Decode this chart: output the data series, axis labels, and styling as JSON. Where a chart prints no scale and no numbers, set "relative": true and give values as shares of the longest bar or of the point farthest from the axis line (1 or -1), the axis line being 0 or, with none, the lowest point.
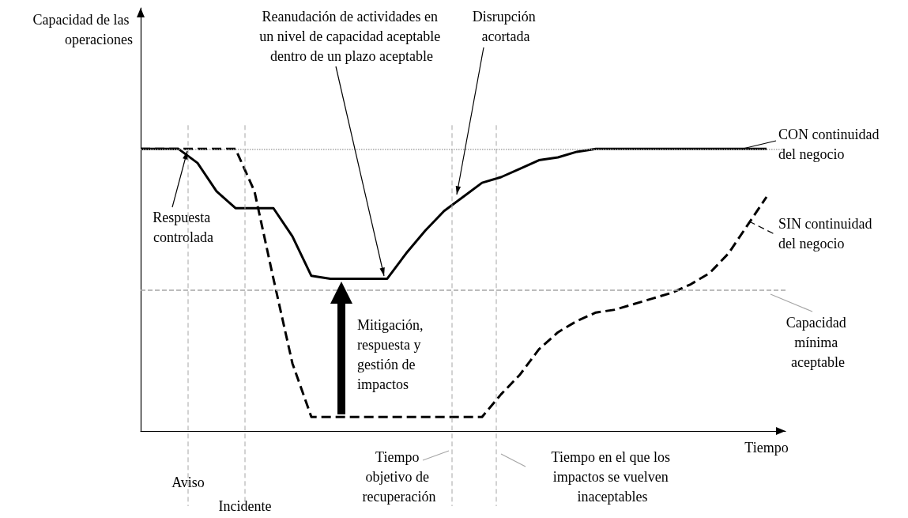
{
  "chart_data": {
    "type": "line",
    "relative": true,
    "xlabel": "Tiempo",
    "grid": false,
    "marker": "none",
    "legend": "right",
    "categories": [
      null,
      null,
      null,
      null,
      null,
      null,
      null,
      null,
      null,
      null,
      null,
      null,
      null,
      null,
      null,
      null,
      null,
      null,
      null,
      null,
      null,
      null,
      null,
      null,
      null,
      null,
      null,
      null,
      null,
      null,
      null,
      null,
      null,
      null,
      null
    ],
    "series": [
      {
        "name": "CON continuidad del negocio",
        "color": "#000000",
        "line_style": "solid",
        "values": [
          1,
          1,
          1,
          0.95,
          0.85,
          0.79,
          0.79,
          0.79,
          0.69,
          0.55,
          0.54,
          0.54,
          0.54,
          0.54,
          0.63,
          0.71,
          0.78,
          0.83,
          0.88,
          0.9,
          0.93,
          0.96,
          0.97,
          0.99,
          1,
          1,
          1,
          1,
          1,
          1,
          1,
          1,
          1,
          1,
          null
        ]
      },
      {
        "name": "SIN continuidad del negocio",
        "color": "#000000",
        "line_style": "dashed",
        "values": [
          1,
          1,
          1,
          1,
          1,
          1,
          0.85,
          0.54,
          0.24,
          0.05,
          0.05,
          0.05,
          0.05,
          0.05,
          0.05,
          0.05,
          0.05,
          0.05,
          0.05,
          0.13,
          0.2,
          0.29,
          0.35,
          0.39,
          0.42,
          0.43,
          0.45,
          0.47,
          0.49,
          0.52,
          0.56,
          0.63,
          0.73,
          0.83,
          null
        ]
      }
    ],
    "ref_lines": [
      {
        "axis": "y",
        "value": 1,
        "line_style": "dotted",
        "color": "#a6a6a6"
      },
      {
        "axis": "y",
        "value": 0.5,
        "label": "Capacidad mínima aceptable",
        "line_style": "dashed",
        "color": "#a6a6a6"
      }
    ],
    "annotations": [
      "Capacidad de las operaciones",
      "Reanudación de actividades en un nivel de capacidad aceptable dentro de un plazo aceptable",
      "Disrupción acortada",
      "Respuesta controlada",
      "Mitigación, respuesta y gestión de impactos",
      "Aviso",
      "Incidente",
      "Tiempo objetivo de recuperación",
      "Tiempo en el que los impactos se vuelven inaceptables"
    ]
  }
}
